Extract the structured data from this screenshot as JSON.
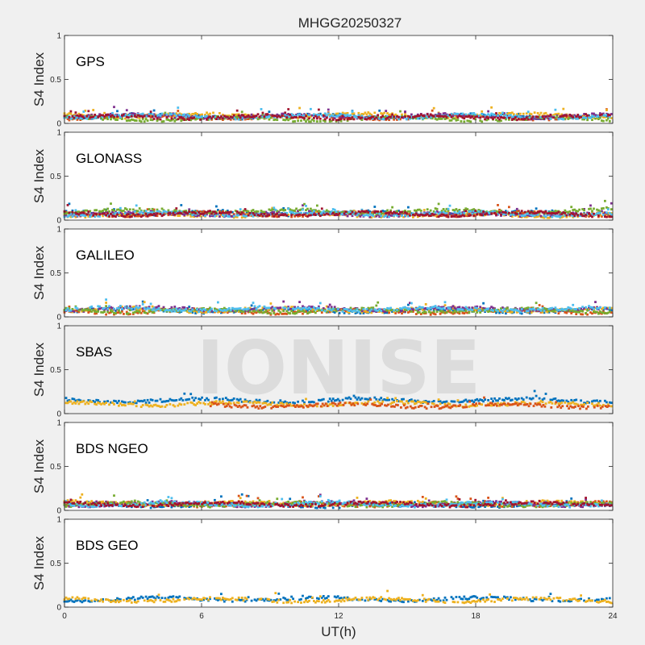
{
  "chart_data": {
    "type": "scatter",
    "title": "MHGG20250327",
    "xlabel": "UT(h)",
    "xlim": [
      0,
      24
    ],
    "xticks": [
      0,
      6,
      12,
      18,
      24
    ],
    "watermark": "IONISE",
    "panels": [
      {
        "name": "GPS",
        "ylabel": "S4 Index",
        "ylim": [
          0,
          1
        ],
        "yticks": [
          0,
          0.5,
          1
        ],
        "series": [
          {
            "color": "#0072bd",
            "base": 0.08,
            "start": 0,
            "end": 24
          },
          {
            "color": "#d95319",
            "base": 0.07,
            "start": 0,
            "end": 24
          },
          {
            "color": "#edb120",
            "base": 0.09,
            "start": 0,
            "end": 24
          },
          {
            "color": "#7e2f8e",
            "base": 0.08,
            "start": 0,
            "end": 24
          },
          {
            "color": "#77ac30",
            "base": 0.05,
            "start": 0,
            "end": 24
          },
          {
            "color": "#4dbeee",
            "base": 0.08,
            "start": 0,
            "end": 24
          },
          {
            "color": "#a2142f",
            "base": 0.07,
            "start": 0,
            "end": 24
          }
        ]
      },
      {
        "name": "GLONASS",
        "ylabel": "S4 Index",
        "ylim": [
          0,
          1
        ],
        "yticks": [
          0,
          0.5,
          1
        ],
        "series": [
          {
            "color": "#0072bd",
            "base": 0.08,
            "start": 0,
            "end": 24
          },
          {
            "color": "#d95319",
            "base": 0.07,
            "start": 0,
            "end": 24
          },
          {
            "color": "#edb120",
            "base": 0.06,
            "start": 0,
            "end": 24
          },
          {
            "color": "#7e2f8e",
            "base": 0.07,
            "start": 0,
            "end": 24
          },
          {
            "color": "#77ac30",
            "base": 0.1,
            "start": 0,
            "end": 24
          },
          {
            "color": "#4dbeee",
            "base": 0.07,
            "start": 0,
            "end": 24
          },
          {
            "color": "#a2142f",
            "base": 0.07,
            "start": 0,
            "end": 24
          }
        ]
      },
      {
        "name": "GALILEO",
        "ylabel": "S4 Index",
        "ylim": [
          0,
          1
        ],
        "yticks": [
          0,
          0.5,
          1
        ],
        "series": [
          {
            "color": "#0072bd",
            "base": 0.07,
            "start": 0,
            "end": 24
          },
          {
            "color": "#d95319",
            "base": 0.06,
            "start": 0,
            "end": 24
          },
          {
            "color": "#edb120",
            "base": 0.08,
            "start": 0,
            "end": 24
          },
          {
            "color": "#7e2f8e",
            "base": 0.09,
            "start": 0,
            "end": 24
          },
          {
            "color": "#77ac30",
            "base": 0.07,
            "start": 0,
            "end": 24
          },
          {
            "color": "#4dbeee",
            "base": 0.09,
            "start": 0,
            "end": 24
          }
        ]
      },
      {
        "name": "SBAS",
        "ylabel": "S4 Index",
        "ylim": [
          0,
          1
        ],
        "yticks": [
          0,
          0.5,
          1
        ],
        "series": [
          {
            "color": "#0072bd",
            "base": 0.15,
            "start": 0,
            "end": 24
          },
          {
            "color": "#edb120",
            "base": 0.11,
            "start": 0,
            "end": 24
          },
          {
            "color": "#d95319",
            "base": 0.09,
            "start": 6.4,
            "end": 24
          }
        ]
      },
      {
        "name": "BDS NGEO",
        "ylabel": "S4 Index",
        "ylim": [
          0,
          1
        ],
        "yticks": [
          0,
          0.5,
          1
        ],
        "series": [
          {
            "color": "#0072bd",
            "base": 0.06,
            "start": 0,
            "end": 24
          },
          {
            "color": "#d95319",
            "base": 0.07,
            "start": 0,
            "end": 24
          },
          {
            "color": "#edb120",
            "base": 0.08,
            "start": 0,
            "end": 24
          },
          {
            "color": "#7e2f8e",
            "base": 0.07,
            "start": 0,
            "end": 24
          },
          {
            "color": "#77ac30",
            "base": 0.07,
            "start": 0,
            "end": 24
          },
          {
            "color": "#4dbeee",
            "base": 0.07,
            "start": 0,
            "end": 24
          },
          {
            "color": "#a2142f",
            "base": 0.07,
            "start": 0,
            "end": 24
          }
        ]
      },
      {
        "name": "BDS GEO",
        "ylabel": "S4 Index",
        "ylim": [
          0,
          1
        ],
        "yticks": [
          0,
          0.5,
          1
        ],
        "series": [
          {
            "color": "#0072bd",
            "base": 0.09,
            "start": 0,
            "end": 24
          },
          {
            "color": "#edb120",
            "base": 0.08,
            "start": 0,
            "end": 24
          }
        ]
      }
    ]
  }
}
